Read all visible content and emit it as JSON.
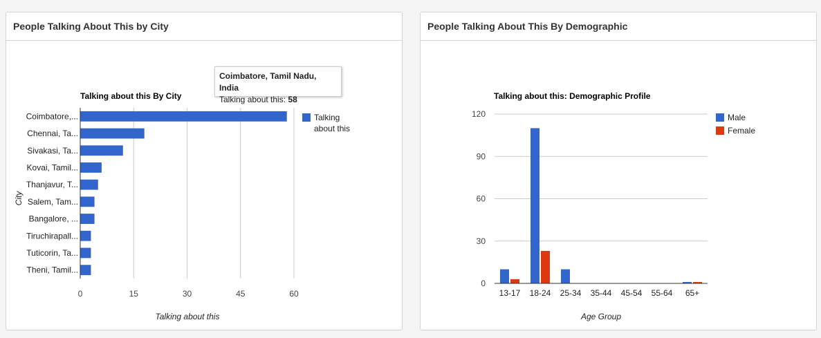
{
  "panels": {
    "city": {
      "title": "People Talking About This by City"
    },
    "demographic": {
      "title": "People Talking About This By Demographic"
    }
  },
  "chart_data": [
    {
      "type": "bar",
      "orientation": "horizontal",
      "title": "Talking about this By City",
      "xlabel": "Talking about this",
      "ylabel": "City",
      "categories": [
        "Coimbatore,...",
        "Chennai, Ta...",
        "Sivakasi, Ta...",
        "Kovai, Tamil...",
        "Thanjavur, T...",
        "Salem, Tam...",
        "Bangalore, ...",
        "Tiruchirapall...",
        "Tuticorin, Ta...",
        "Theni, Tamil..."
      ],
      "values": [
        58,
        18,
        12,
        6,
        5,
        4,
        4,
        3,
        3,
        3
      ],
      "xlim": [
        0,
        60
      ],
      "ticks": [
        0,
        15,
        30,
        45,
        60
      ],
      "tick_labels": [
        "0",
        "15",
        "30",
        "45",
        "60"
      ],
      "grid": true,
      "legend": [
        {
          "name": "Talking about this",
          "color": "#3366cc"
        }
      ],
      "legend_position": "right",
      "series_color": "#3366cc",
      "tooltip": {
        "title": "Coimbatore, Tamil Nadu, India",
        "label": "Talking about this:",
        "value": "58"
      }
    },
    {
      "type": "bar",
      "title": "Talking about this: Demographic Profile",
      "xlabel": "Age Group",
      "ylabel": "",
      "categories": [
        "13-17",
        "18-24",
        "25-34",
        "35-44",
        "45-54",
        "55-64",
        "65+"
      ],
      "series": [
        {
          "name": "Male",
          "color": "#3366cc",
          "values": [
            10,
            110,
            10,
            0,
            0,
            0,
            1
          ]
        },
        {
          "name": "Female",
          "color": "#dc3912",
          "values": [
            3,
            23,
            0,
            0,
            0,
            0,
            1
          ]
        }
      ],
      "ylim": [
        0,
        120
      ],
      "ticks": [
        0,
        30,
        60,
        90,
        120
      ],
      "tick_labels": [
        "0",
        "30",
        "60",
        "90",
        "120"
      ],
      "grid": true,
      "legend_position": "right"
    }
  ]
}
